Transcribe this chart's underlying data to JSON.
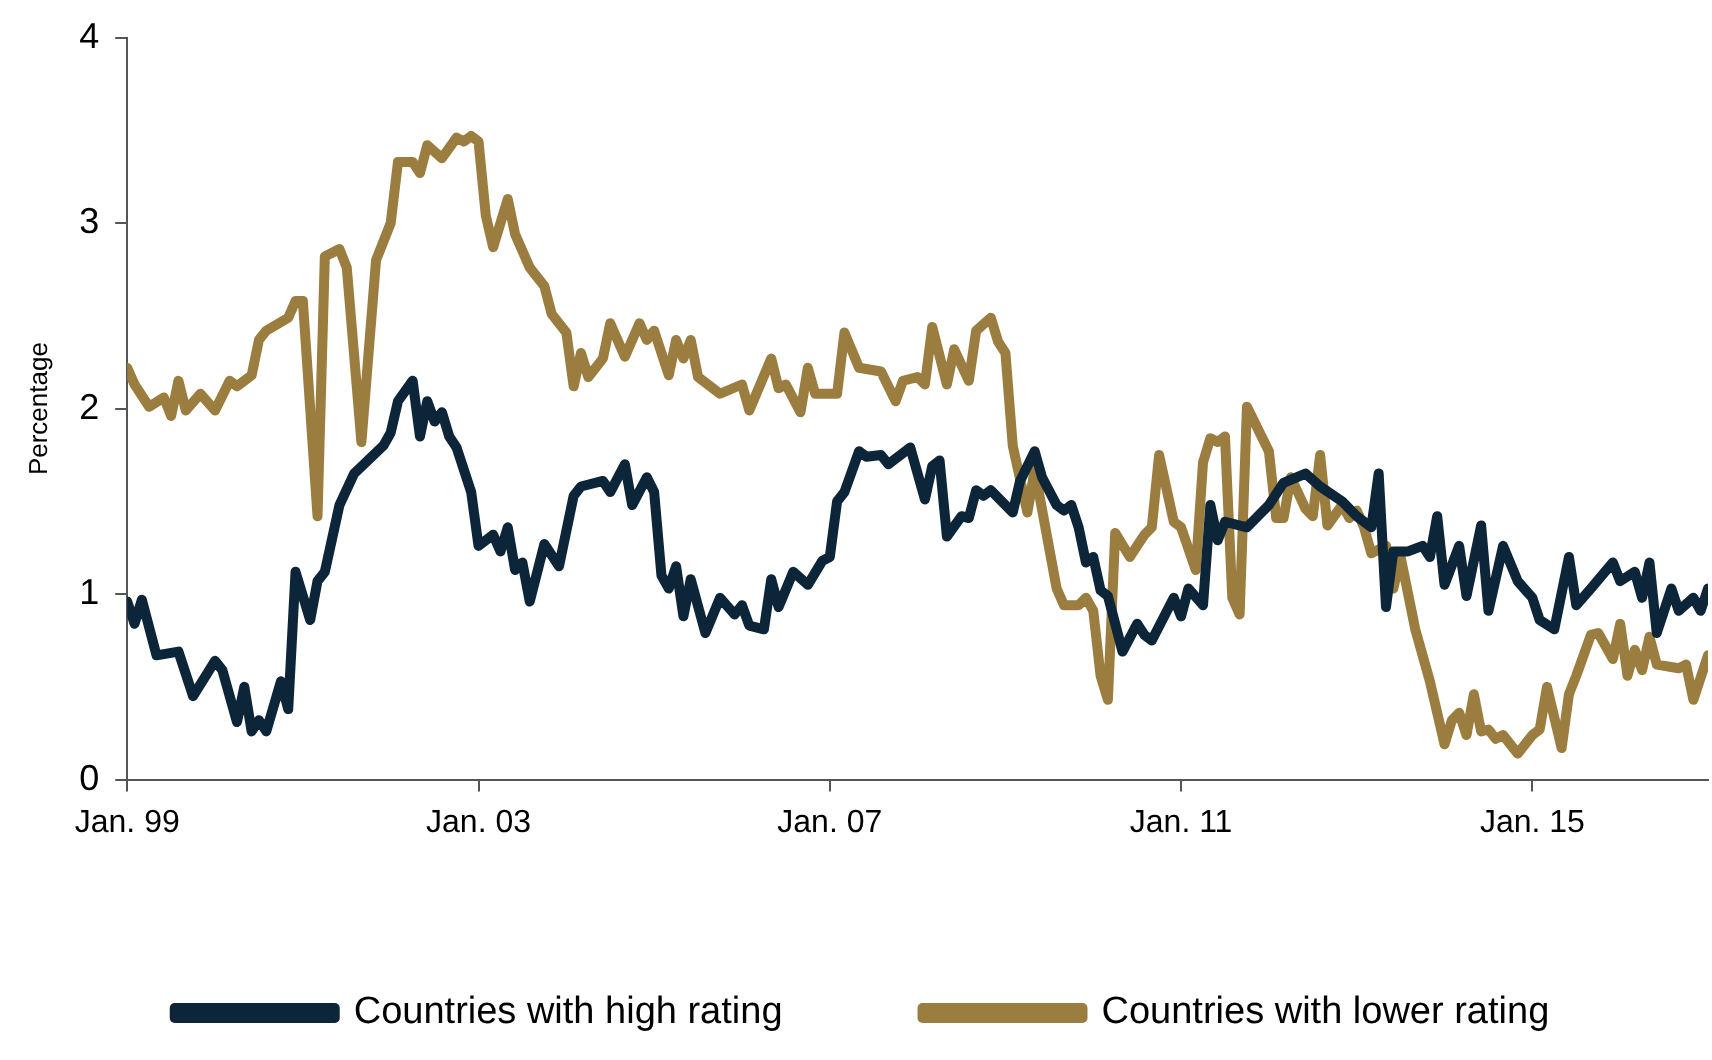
{
  "chart_data": {
    "type": "line",
    "ylabel": "Percentage",
    "xlim": [
      "1999-01",
      "2017-01"
    ],
    "xticks": [
      {
        "value": "1999-01",
        "label": "Jan. 99"
      },
      {
        "value": "2003-01",
        "label": "Jan. 03"
      },
      {
        "value": "2007-01",
        "label": "Jan. 07"
      },
      {
        "value": "2011-01",
        "label": "Jan. 11"
      },
      {
        "value": "2015-01",
        "label": "Jan. 15"
      }
    ],
    "ylim": [
      0,
      4
    ],
    "yticks": [
      0,
      1,
      2,
      3,
      4
    ],
    "grid": false,
    "legend": "bottom",
    "marker": "none",
    "line_style": "solid",
    "series": [
      {
        "name": "Countries with high rating",
        "color": "#0d2538",
        "x": [
          "1999-01",
          "1999-02",
          "1999-03",
          "1999-05",
          "1999-08",
          "1999-10",
          "2000-01",
          "2000-02",
          "2000-04",
          "2000-05",
          "2000-06",
          "2000-07",
          "2000-08",
          "2000-10",
          "2000-11",
          "2000-12",
          "2001-02",
          "2001-03",
          "2001-04",
          "2001-06",
          "2001-08",
          "2001-12",
          "2002-01",
          "2002-02",
          "2002-04",
          "2002-05",
          "2002-06",
          "2002-07",
          "2002-08",
          "2002-09",
          "2002-10",
          "2002-12",
          "2003-01",
          "2003-03",
          "2003-04",
          "2003-05",
          "2003-06",
          "2003-07",
          "2003-08",
          "2003-10",
          "2003-12",
          "2004-02",
          "2004-03",
          "2004-06",
          "2004-07",
          "2004-09",
          "2004-10",
          "2004-12",
          "2005-01",
          "2005-02",
          "2005-03",
          "2005-04",
          "2005-05",
          "2005-06",
          "2005-08",
          "2005-10",
          "2005-12",
          "2006-01",
          "2006-02",
          "2006-04",
          "2006-05",
          "2006-06",
          "2006-08",
          "2006-10",
          "2006-12",
          "2007-01",
          "2007-02",
          "2007-03",
          "2007-05",
          "2007-06",
          "2007-08",
          "2007-09",
          "2007-12",
          "2008-02",
          "2008-03",
          "2008-04",
          "2008-05",
          "2008-07",
          "2008-08",
          "2008-09",
          "2008-10",
          "2008-11",
          "2009-02",
          "2009-03",
          "2009-05",
          "2009-06",
          "2009-08",
          "2009-09",
          "2009-10",
          "2009-11",
          "2009-12",
          "2010-01",
          "2010-02",
          "2010-03",
          "2010-05",
          "2010-07",
          "2010-08",
          "2010-09",
          "2010-12",
          "2011-01",
          "2011-02",
          "2011-04",
          "2011-05",
          "2011-06",
          "2011-07",
          "2011-10",
          "2012-01",
          "2012-03",
          "2012-06",
          "2012-08",
          "2012-11",
          "2013-01",
          "2013-03",
          "2013-04",
          "2013-05",
          "2013-06",
          "2013-08",
          "2013-10",
          "2013-11",
          "2013-12",
          "2014-01",
          "2014-03",
          "2014-04",
          "2014-06",
          "2014-07",
          "2014-09",
          "2014-11",
          "2015-01",
          "2015-02",
          "2015-04",
          "2015-06",
          "2015-07",
          "2015-09",
          "2015-12",
          "2016-01",
          "2016-03",
          "2016-04",
          "2016-05",
          "2016-06",
          "2016-08",
          "2016-09",
          "2016-11",
          "2016-12",
          "2017-01"
        ],
        "values": [
          0.96,
          0.84,
          0.97,
          0.67,
          0.69,
          0.45,
          0.64,
          0.59,
          0.31,
          0.5,
          0.26,
          0.32,
          0.26,
          0.53,
          0.38,
          1.12,
          0.86,
          1.07,
          1.12,
          1.48,
          1.65,
          1.8,
          1.87,
          2.04,
          2.15,
          1.85,
          2.04,
          1.93,
          1.98,
          1.85,
          1.79,
          1.55,
          1.26,
          1.32,
          1.23,
          1.36,
          1.13,
          1.17,
          0.96,
          1.27,
          1.15,
          1.53,
          1.58,
          1.61,
          1.55,
          1.7,
          1.48,
          1.63,
          1.55,
          1.1,
          1.03,
          1.15,
          0.88,
          1.08,
          0.79,
          0.98,
          0.89,
          0.94,
          0.83,
          0.81,
          1.08,
          0.93,
          1.12,
          1.05,
          1.18,
          1.2,
          1.5,
          1.55,
          1.77,
          1.74,
          1.75,
          1.7,
          1.79,
          1.51,
          1.69,
          1.72,
          1.31,
          1.42,
          1.41,
          1.56,
          1.53,
          1.56,
          1.44,
          1.61,
          1.77,
          1.63,
          1.48,
          1.45,
          1.48,
          1.36,
          1.17,
          1.2,
          1.02,
          0.99,
          0.69,
          0.84,
          0.78,
          0.75,
          0.98,
          0.88,
          1.03,
          0.94,
          1.48,
          1.29,
          1.39,
          1.36,
          1.48,
          1.6,
          1.65,
          1.58,
          1.5,
          1.42,
          1.36,
          1.65,
          0.93,
          1.23,
          1.23,
          1.26,
          1.2,
          1.42,
          1.05,
          1.26,
          0.99,
          1.37,
          0.91,
          1.26,
          1.07,
          0.98,
          0.86,
          0.81,
          1.2,
          0.94,
          1.03,
          1.17,
          1.07,
          1.12,
          0.98,
          1.17,
          0.79,
          1.03,
          0.91,
          0.98,
          0.91,
          1.03
        ]
      },
      {
        "name": "Countries with lower rating",
        "color": "#9b7e3f",
        "x": [
          "1999-01",
          "1999-02",
          "1999-04",
          "1999-06",
          "1999-07",
          "1999-08",
          "1999-09",
          "1999-11",
          "2000-01",
          "2000-03",
          "2000-04",
          "2000-06",
          "2000-07",
          "2000-08",
          "2000-11",
          "2000-12",
          "2001-01",
          "2001-03",
          "2001-04",
          "2001-06",
          "2001-07",
          "2001-09",
          "2001-11",
          "2002-01",
          "2002-02",
          "2002-04",
          "2002-05",
          "2002-06",
          "2002-08",
          "2002-10",
          "2002-11",
          "2002-12",
          "2003-01",
          "2003-02",
          "2003-03",
          "2003-05",
          "2003-06",
          "2003-08",
          "2003-10",
          "2003-11",
          "2004-01",
          "2004-02",
          "2004-03",
          "2004-04",
          "2004-06",
          "2004-07",
          "2004-09",
          "2004-11",
          "2004-12",
          "2005-01",
          "2005-03",
          "2005-04",
          "2005-05",
          "2005-06",
          "2005-07",
          "2005-10",
          "2006-01",
          "2006-02",
          "2006-05",
          "2006-06",
          "2006-07",
          "2006-09",
          "2006-10",
          "2006-11",
          "2007-02",
          "2007-03",
          "2007-05",
          "2007-08",
          "2007-10",
          "2007-11",
          "2008-01",
          "2008-02",
          "2008-03",
          "2008-05",
          "2008-06",
          "2008-08",
          "2008-09",
          "2008-11",
          "2008-12",
          "2009-01",
          "2009-02",
          "2009-04",
          "2009-05",
          "2009-08",
          "2009-09",
          "2009-11",
          "2009-12",
          "2010-01",
          "2010-02",
          "2010-03",
          "2010-04",
          "2010-06",
          "2010-07",
          "2010-08",
          "2010-09",
          "2010-10",
          "2010-12",
          "2011-01",
          "2011-03",
          "2011-04",
          "2011-05",
          "2011-06",
          "2011-07",
          "2011-08",
          "2011-09",
          "2011-10",
          "2011-12",
          "2012-01",
          "2012-02",
          "2012-03",
          "2012-04",
          "2012-06",
          "2012-07",
          "2012-08",
          "2012-09",
          "2012-11",
          "2012-12",
          "2013-01",
          "2013-02",
          "2013-03",
          "2013-05",
          "2013-06",
          "2013-07",
          "2013-09",
          "2013-11",
          "2013-12",
          "2014-01",
          "2014-02",
          "2014-03",
          "2014-04",
          "2014-05",
          "2014-06",
          "2014-07",
          "2014-08",
          "2014-09",
          "2014-11",
          "2015-01",
          "2015-02",
          "2015-03",
          "2015-05",
          "2015-06",
          "2015-07",
          "2015-09",
          "2015-10",
          "2015-12",
          "2016-01",
          "2016-02",
          "2016-03",
          "2016-04",
          "2016-05",
          "2016-06",
          "2016-09",
          "2016-10",
          "2016-11",
          "2017-01"
        ],
        "values": [
          2.22,
          2.13,
          2.01,
          2.06,
          1.96,
          2.15,
          1.99,
          2.08,
          1.99,
          2.15,
          2.12,
          2.18,
          2.37,
          2.42,
          2.49,
          2.58,
          2.58,
          1.42,
          2.82,
          2.86,
          2.76,
          1.82,
          2.8,
          3.0,
          3.33,
          3.33,
          3.27,
          3.42,
          3.35,
          3.46,
          3.44,
          3.47,
          3.44,
          3.04,
          2.87,
          3.13,
          2.94,
          2.76,
          2.66,
          2.51,
          2.41,
          2.12,
          2.3,
          2.17,
          2.27,
          2.46,
          2.28,
          2.46,
          2.37,
          2.42,
          2.18,
          2.37,
          2.27,
          2.37,
          2.17,
          2.08,
          2.13,
          1.99,
          2.27,
          2.11,
          2.13,
          1.98,
          2.22,
          2.08,
          2.08,
          2.41,
          2.22,
          2.2,
          2.04,
          2.15,
          2.17,
          2.13,
          2.44,
          2.13,
          2.32,
          2.15,
          2.42,
          2.49,
          2.36,
          2.3,
          1.8,
          1.44,
          1.67,
          1.03,
          0.94,
          0.94,
          0.98,
          0.91,
          0.56,
          0.43,
          1.33,
          1.2,
          1.26,
          1.32,
          1.36,
          1.75,
          1.39,
          1.36,
          1.13,
          1.71,
          1.84,
          1.82,
          1.85,
          0.98,
          0.89,
          2.01,
          1.85,
          1.77,
          1.41,
          1.41,
          1.63,
          1.46,
          1.42,
          1.75,
          1.37,
          1.48,
          1.41,
          1.45,
          1.36,
          1.22,
          1.26,
          1.03,
          1.2,
          0.81,
          0.53,
          0.36,
          0.19,
          0.32,
          0.36,
          0.24,
          0.46,
          0.26,
          0.27,
          0.22,
          0.24,
          0.14,
          0.24,
          0.27,
          0.5,
          0.17,
          0.46,
          0.56,
          0.78,
          0.79,
          0.65,
          0.84,
          0.56,
          0.7,
          0.59,
          0.77,
          0.62,
          0.6,
          0.62,
          0.43,
          0.67
        ]
      }
    ]
  }
}
